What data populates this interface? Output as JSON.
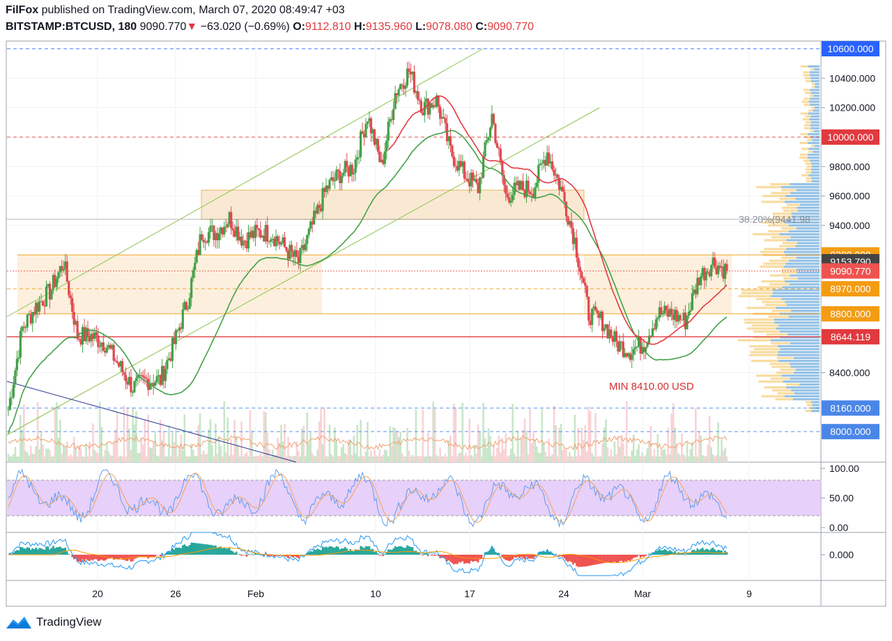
{
  "header": {
    "publisher": "FilFox",
    "published_text": "published on TradingView.com, March 07, 2020 08:49:47 +03",
    "symbol": "BITSTAMP:BTCUSD, 180",
    "last": "9090.770",
    "arrow": "▼",
    "change": "−63.020 (−0.69%)",
    "o_label": "O:",
    "o_value": "9112.810",
    "h_label": "H:",
    "h_value": "9135.960",
    "l_label": "L:",
    "l_value": "9078.080",
    "c_label": "C:",
    "c_value": "9090.770"
  },
  "footer": {
    "brand": "TradingView",
    "logo_icon": "tradingview-logo-icon"
  },
  "chart_data": [
    {
      "type": "candlestick",
      "symbol": "BITSTAMP:BTCUSD",
      "interval": "180",
      "ylim": [
        7850,
        10650
      ],
      "y_ticks": [
        "10400.000",
        "10200.000",
        "9800.000",
        "9600.000",
        "9400.000",
        "8400.000"
      ],
      "x_ticks": [
        "20",
        "26",
        "Feb",
        "10",
        "17",
        "24",
        "Mar",
        "9"
      ],
      "price_path": [
        [
          "Jan 15",
          8150
        ],
        [
          "Jan 16",
          8700
        ],
        [
          "Jan 17",
          8850
        ],
        [
          "Jan 18",
          8950
        ],
        [
          "Jan 19",
          9150
        ],
        [
          "Jan 20",
          8650
        ],
        [
          "Jan 21",
          8650
        ],
        [
          "Jan 22",
          8600
        ],
        [
          "Jan 23",
          8450
        ],
        [
          "Jan 24",
          8300
        ],
        [
          "Jan 25",
          8350
        ],
        [
          "Jan 26",
          8350
        ],
        [
          "Jan 27",
          8600
        ],
        [
          "Jan 28",
          8900
        ],
        [
          "Jan 29",
          9350
        ],
        [
          "Jan 30",
          9350
        ],
        [
          "Jan 31",
          9450
        ],
        [
          "Feb 01",
          9300
        ],
        [
          "Feb 02",
          9350
        ],
        [
          "Feb 03",
          9350
        ],
        [
          "Feb 04",
          9250
        ],
        [
          "Feb 05",
          9150
        ],
        [
          "Feb 06",
          9400
        ],
        [
          "Feb 07",
          9650
        ],
        [
          "Feb 08",
          9750
        ],
        [
          "Feb 09",
          9800
        ],
        [
          "Feb 10",
          10150
        ],
        [
          "Feb 11",
          9800
        ],
        [
          "Feb 12",
          10300
        ],
        [
          "Feb 13",
          10450
        ],
        [
          "Feb 14",
          10200
        ],
        [
          "Feb 15",
          10250
        ],
        [
          "Feb 16",
          9900
        ],
        [
          "Feb 17",
          9750
        ],
        [
          "Feb 18",
          9650
        ],
        [
          "Feb 19",
          10150
        ],
        [
          "Feb 20",
          9600
        ],
        [
          "Feb 21",
          9650
        ],
        [
          "Feb 22",
          9650
        ],
        [
          "Feb 23",
          9900
        ],
        [
          "Feb 24",
          9650
        ],
        [
          "Feb 25",
          9300
        ],
        [
          "Feb 26",
          8800
        ],
        [
          "Feb 27",
          8750
        ],
        [
          "Feb 28",
          8600
        ],
        [
          "Feb 29",
          8550
        ],
        [
          "Mar 01",
          8600
        ],
        [
          "Mar 02",
          8800
        ],
        [
          "Mar 03",
          8800
        ],
        [
          "Mar 04",
          8750
        ],
        [
          "Mar 05",
          9050
        ],
        [
          "Mar 06",
          9150
        ],
        [
          "Mar 07",
          9090.77
        ]
      ],
      "ema_color": "#43a047",
      "ma_color": "#e0393e",
      "horizontal_levels": [
        {
          "label": "10600.000",
          "value": 10600,
          "color": "#2962ff",
          "style": "dashed"
        },
        {
          "label": "10000.000",
          "value": 10000,
          "color": "#e0393e",
          "style": "dashed"
        },
        {
          "label": "9200.000",
          "value": 9200,
          "color": "#f39c12",
          "style": "solid"
        },
        {
          "label": "9153.790",
          "value": 9153.79,
          "color": "#444444",
          "style": "none"
        },
        {
          "label": "9090.770",
          "value": 9090.77,
          "color": "#ef5350",
          "style": "dotted"
        },
        {
          "label": "8970.000",
          "value": 8970,
          "color": "#f39c12",
          "style": "dashed"
        },
        {
          "label": "8800.000",
          "value": 8800,
          "color": "#f39c12",
          "style": "solid"
        },
        {
          "label": "8644.119",
          "value": 8644.119,
          "color": "#e0393e",
          "style": "solid"
        },
        {
          "label": "8160.000",
          "value": 8160,
          "color": "#4a86e8",
          "style": "dashed"
        },
        {
          "label": "8000.000",
          "value": 8000,
          "color": "#4a86e8",
          "style": "dashed"
        }
      ],
      "fib_label": "38.20%(9441.98",
      "fib_value": 9441.98,
      "annotation": "MIN 8410.00 USD",
      "zones": [
        {
          "from": 9440,
          "to": 9640
        },
        {
          "from": 8800,
          "to": 9200
        }
      ]
    },
    {
      "type": "line",
      "name": "stochastic",
      "ylim": [
        0,
        100
      ],
      "y_ticks": [
        "100.00",
        "50.00",
        "0.00"
      ],
      "band": [
        20,
        80
      ],
      "band_color": "#e1c4f9"
    },
    {
      "type": "bar",
      "name": "macd",
      "y_ticks": [
        "0.000"
      ]
    }
  ]
}
